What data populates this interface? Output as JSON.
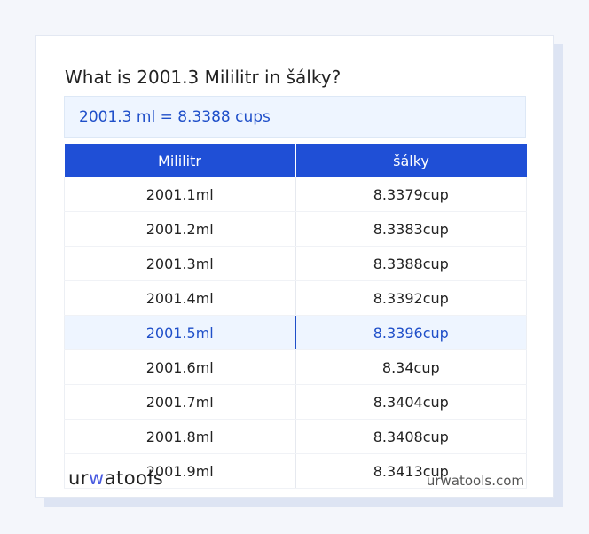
{
  "title": "What is 2001.3 Mililitr in šálky?",
  "result": "2001.3 ml = 8.3388 cups",
  "table": {
    "headers": [
      "Mililitr",
      "šálky"
    ],
    "rows": [
      [
        "2001.1ml",
        "8.3379cup"
      ],
      [
        "2001.2ml",
        "8.3383cup"
      ],
      [
        "2001.3ml",
        "8.3388cup"
      ],
      [
        "2001.4ml",
        "8.3392cup"
      ],
      [
        "2001.5ml",
        "8.3396cup"
      ],
      [
        "2001.6ml",
        "8.34cup"
      ],
      [
        "2001.7ml",
        "8.3404cup"
      ],
      [
        "2001.8ml",
        "8.3408cup"
      ],
      [
        "2001.9ml",
        "8.3413cup"
      ]
    ],
    "highlighted_row": 4
  },
  "footer": {
    "logo": "urwatools",
    "site": "urwatools.com"
  },
  "colors": {
    "accent": "#1f4fd6",
    "highlight_bg": "#eef5ff"
  }
}
